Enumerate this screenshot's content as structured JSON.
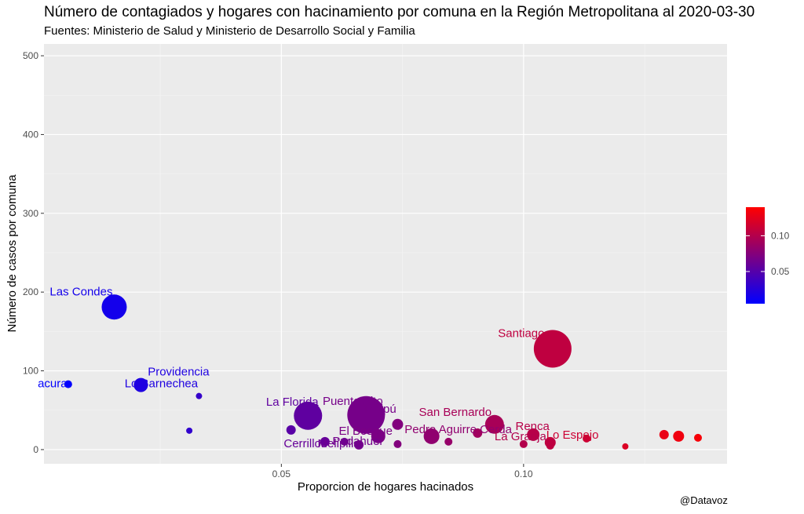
{
  "header": {
    "title": "Número de contagiados y hogares con hacinamiento por comuna en la Región Metropolitana al 2020-03-30",
    "subtitle": "Fuentes: Ministerio de Salud y Ministerio de Desarrollo Social y Familia"
  },
  "footer": {
    "credit": "@Datavoz"
  },
  "colors": {
    "panel": "#ebebeb",
    "grid_major": "#ffffff",
    "low": "#0000ff",
    "high": "#ff0000"
  },
  "chart_data": {
    "type": "scatter",
    "xlabel": "Proporcion de hogares hacinados",
    "ylabel": "Número de casos por comuna",
    "xlim": [
      0.001,
      0.142
    ],
    "ylim": [
      -18,
      515
    ],
    "x_ticks": [
      0.05,
      0.1
    ],
    "x_tick_labels": [
      "0.05",
      "0.10"
    ],
    "y_ticks": [
      0,
      100,
      200,
      300,
      400,
      500
    ],
    "y_tick_labels": [
      "0",
      "100",
      "200",
      "300",
      "400",
      "500"
    ],
    "grid": true,
    "color_scale": {
      "low": "#0000ff",
      "high": "#ff0000",
      "min": 0.005,
      "max": 0.14,
      "breaks": [
        0.05,
        0.1
      ],
      "break_labels": [
        "0.05",
        "0.10"
      ],
      "position": "right"
    },
    "points": [
      {
        "x": 0.0155,
        "y": 181,
        "size": 16,
        "label": "Las Condes"
      },
      {
        "x": 0.006,
        "y": 83,
        "size": 5,
        "label": "acura"
      },
      {
        "x": 0.021,
        "y": 82,
        "size": 9,
        "label": "Providencia"
      },
      {
        "x": 0.021,
        "y": 82,
        "size": 0,
        "label": "Lo Barnechea"
      },
      {
        "x": 0.033,
        "y": 68,
        "size": 4
      },
      {
        "x": 0.031,
        "y": 24,
        "size": 4
      },
      {
        "x": 0.0555,
        "y": 43,
        "size": 18,
        "label": "La Florida"
      },
      {
        "x": 0.0675,
        "y": 44,
        "size": 24,
        "label": "Puente Alto"
      },
      {
        "x": 0.0675,
        "y": 44,
        "size": 0,
        "label": "Maipú"
      },
      {
        "x": 0.052,
        "y": 25,
        "size": 6
      },
      {
        "x": 0.059,
        "y": 10,
        "size": 6,
        "label": "Cerrillos"
      },
      {
        "x": 0.063,
        "y": 10,
        "size": 5,
        "label": "Melipilla"
      },
      {
        "x": 0.066,
        "y": 6,
        "size": 6,
        "label": "Pudahuel"
      },
      {
        "x": 0.07,
        "y": 17,
        "size": 9,
        "label": "El Bosque"
      },
      {
        "x": 0.074,
        "y": 32,
        "size": 7
      },
      {
        "x": 0.074,
        "y": 7,
        "size": 5
      },
      {
        "x": 0.081,
        "y": 17,
        "size": 10,
        "label": "Pedro Aguirre Cerda"
      },
      {
        "x": 0.0845,
        "y": 10,
        "size": 5
      },
      {
        "x": 0.094,
        "y": 32,
        "size": 12,
        "label": "San Bernardo"
      },
      {
        "x": 0.0905,
        "y": 21,
        "size": 6
      },
      {
        "x": 0.102,
        "y": 19,
        "size": 8,
        "label": "Renca"
      },
      {
        "x": 0.1,
        "y": 7,
        "size": 5,
        "label": "La Granja"
      },
      {
        "x": 0.106,
        "y": 128,
        "size": 24,
        "label": "Santiago"
      },
      {
        "x": 0.1055,
        "y": 9,
        "size": 7
      },
      {
        "x": 0.1055,
        "y": 5,
        "size": 5
      },
      {
        "x": 0.113,
        "y": 14,
        "size": 5,
        "label": "Lo Espejo"
      },
      {
        "x": 0.121,
        "y": 4,
        "size": 4
      },
      {
        "x": 0.129,
        "y": 19,
        "size": 6
      },
      {
        "x": 0.132,
        "y": 17,
        "size": 7
      },
      {
        "x": 0.136,
        "y": 15,
        "size": 5
      }
    ]
  }
}
